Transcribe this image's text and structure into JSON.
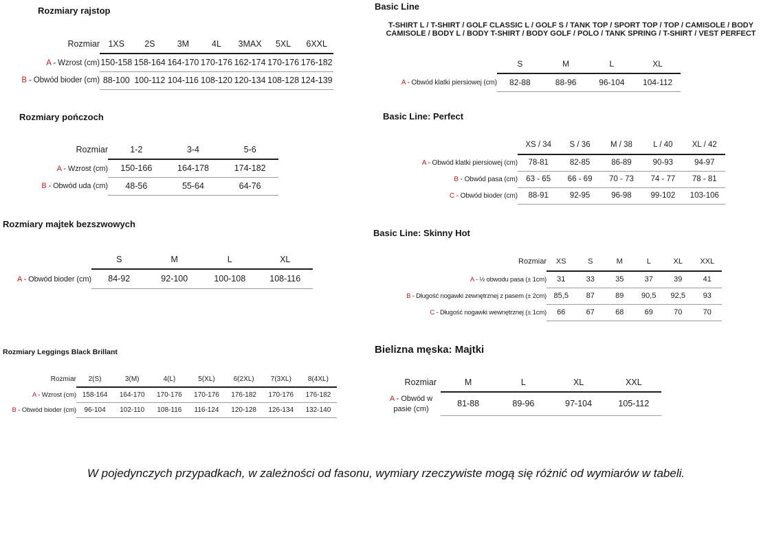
{
  "colors": {
    "accent_red": "#c8181e",
    "text": "#1d1d1d",
    "rule_dark": "#1b1b1b",
    "rule_light": "#9a9a9a"
  },
  "sections": {
    "rajstop": {
      "title": "Rozmiary rajstop",
      "size_header": "Rozmiar",
      "columns": [
        "1XS",
        "2S",
        "3M",
        "4L",
        "3MAX",
        "5XL",
        "6XXL"
      ],
      "rows": [
        {
          "letter": "A",
          "label": " - Wzrost (cm)",
          "values": [
            "150-158",
            "158-164",
            "164-170",
            "170-176",
            "162-174",
            "170-176",
            "176-182"
          ]
        },
        {
          "letter": "B",
          "label": " - Obwód bioder (cm)",
          "values": [
            "88-100",
            "100-112",
            "104-116",
            "108-120",
            "120-134",
            "108-128",
            "124-139"
          ]
        }
      ]
    },
    "ponczochy": {
      "title": "Rozmiary pończoch",
      "size_header": "Rozmiar",
      "columns": [
        "1-2",
        "3-4",
        "5-6"
      ],
      "rows": [
        {
          "letter": "A",
          "label": " - Wzrost (cm)",
          "values": [
            "150-166",
            "164-178",
            "174-182"
          ]
        },
        {
          "letter": "B",
          "label": " - Obwód uda (cm)",
          "values": [
            "48-56",
            "55-64",
            "64-76"
          ]
        }
      ]
    },
    "majtki_bezszwowe": {
      "title": "Rozmiary majtek bezszwowych",
      "size_header": "",
      "columns": [
        "S",
        "M",
        "L",
        "XL"
      ],
      "rows": [
        {
          "letter": "A",
          "label": " - Obwód bioder (cm)",
          "values": [
            "84-92",
            "92-100",
            "100-108",
            "108-116"
          ]
        }
      ]
    },
    "leggings": {
      "title": "Rozmiary Leggings Black Brillant",
      "size_header": "Rozmiar",
      "columns": [
        "2(S)",
        "3(M)",
        "4(L)",
        "5(XL)",
        "6(2XL)",
        "7(3XL)",
        "8(4XL)"
      ],
      "rows": [
        {
          "letter": "A",
          "label": " - Wzrost (cm)",
          "values": [
            "158-164",
            "164-170",
            "170-176",
            "170-176",
            "176-182",
            "170-176",
            "176-182"
          ]
        },
        {
          "letter": "B",
          "label": " - Obwód bioder (cm)",
          "values": [
            "96-104",
            "102-110",
            "108-116",
            "116-124",
            "120-128",
            "126-134",
            "132-140"
          ]
        }
      ]
    },
    "basic_line": {
      "title": "Basic Line",
      "products": "T-SHIRT L / T-SHIRT / GOLF CLASSIC L / GOLF S / TANK TOP / SPORT TOP / TOP / CAMISOLE / BODY CAMISOLE / BODY L / BODY T-SHIRT / BODY GOLF / POLO / TANK SPRING / T-SHIRT / VEST PERFECT",
      "size_header": "",
      "columns": [
        "S",
        "M",
        "L",
        "XL"
      ],
      "rows": [
        {
          "letter": "A",
          "label": " - Obwód klatki piersiowej (cm)",
          "values": [
            "82-88",
            "88-96",
            "96-104",
            "104-112"
          ]
        }
      ]
    },
    "perfect": {
      "title": "Basic Line: Perfect",
      "size_header": "",
      "columns": [
        "XS / 34",
        "S / 36",
        "M / 38",
        "L / 40",
        "XL / 42"
      ],
      "rows": [
        {
          "letter": "A",
          "label": " - Obwód klatki piersiowej (cm)",
          "values": [
            "78-81",
            "82-85",
            "86-89",
            "90-93",
            "94-97"
          ]
        },
        {
          "letter": "B",
          "label": " - Obwód pasa (cm)",
          "values": [
            "63 - 65",
            "66 - 69",
            "70 - 73",
            "74 - 77",
            "78 - 81"
          ]
        },
        {
          "letter": "C",
          "label": " - Obwód bioder (cm)",
          "values": [
            "88-91",
            "92-95",
            "96-98",
            "99-102",
            "103-106"
          ]
        }
      ]
    },
    "skinny_hot": {
      "title": "Basic Line: Skinny Hot",
      "size_header": "Rozmiar",
      "columns": [
        "XS",
        "S",
        "M",
        "L",
        "XL",
        "XXL"
      ],
      "rows": [
        {
          "letter": "A",
          "label": " - ½ obwodu pasa (± 1cm)",
          "values": [
            "31",
            "33",
            "35",
            "37",
            "39",
            "41"
          ]
        },
        {
          "letter": "B",
          "label": " - Długość nogawki zewnętrznej z pasem (± 2cm)",
          "values": [
            "85,5",
            "87",
            "89",
            "90,5",
            "92,5",
            "93"
          ]
        },
        {
          "letter": "C",
          "label": " - Długość nogawki wewnętrznej (± 1cm)",
          "values": [
            "66",
            "67",
            "68",
            "69",
            "70",
            "70"
          ]
        }
      ]
    },
    "bielizna_meska": {
      "title": "Bielizna męska: Majtki",
      "size_header": "Rozmiar",
      "columns": [
        "M",
        "L",
        "XL",
        "XXL"
      ],
      "rows": [
        {
          "letter": "A",
          "label": " - Obwód w pasie (cm)",
          "values": [
            "81-88",
            "89-96",
            "97-104",
            "105-112"
          ]
        }
      ]
    }
  },
  "footer": {
    "note": "W pojedynczych przypadkach, w zależności od fasonu, wymiary rzeczywiste mogą się różnić od wymiarów w tabeli."
  }
}
